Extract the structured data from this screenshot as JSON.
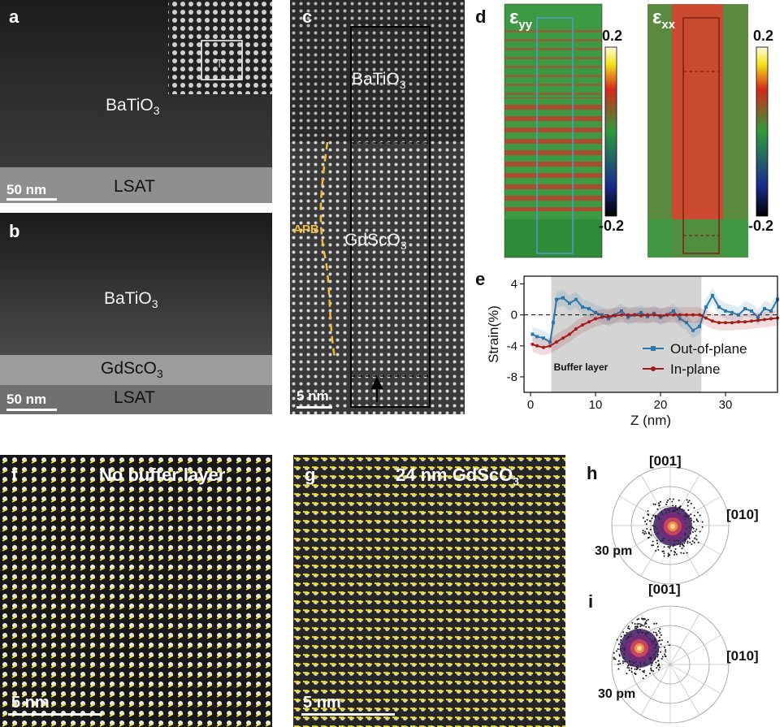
{
  "panels": {
    "a": {
      "letter": "a",
      "film": "BaTiO",
      "film_sub": "3",
      "substrate": "LSAT",
      "scale": "50 nm"
    },
    "b": {
      "letter": "b",
      "film": "BaTiO",
      "film_sub": "3",
      "buffer": "GdScO",
      "buffer_sub": "3",
      "substrate": "LSAT",
      "scale": "50 nm"
    },
    "c": {
      "letter": "c",
      "film": "BaTiO",
      "film_sub": "3",
      "buffer": "GdScO",
      "buffer_sub": "3",
      "apb": "APB",
      "scale": "5 nm"
    },
    "d": {
      "letter": "d",
      "map1_label": "ε",
      "map1_sub": "yy",
      "map2_label": "ε",
      "map2_sub": "xx",
      "cbar_max": "0.2",
      "cbar_min": "-0.2"
    },
    "e": {
      "letter": "e",
      "shaded_label": "Buffer layer"
    },
    "f": {
      "letter": "f",
      "title": "No buffer layer",
      "scale": "5 nm"
    },
    "g": {
      "letter": "g",
      "title_main": "24 nm GdScO",
      "title_sub": "3",
      "scale": "5 nm"
    },
    "h": {
      "letter": "h",
      "top_label": "[001]",
      "right_label": "[010]",
      "radius_label": "30 pm"
    },
    "i": {
      "letter": "i",
      "top_label": "[001]",
      "right_label": "[010]",
      "radius_label": "30 pm"
    }
  },
  "chart_data": {
    "type": "line",
    "xlabel": "Z (nm)",
    "ylabel": "Strain(%)",
    "xlim": [
      -1,
      38
    ],
    "ylim": [
      -10,
      5
    ],
    "xticks": [
      0,
      10,
      20,
      30
    ],
    "yticks": [
      4,
      0,
      -4,
      -8
    ],
    "shaded_region": [
      3.2,
      26.3
    ],
    "legend_placement": "bottom-right",
    "series": [
      {
        "name": "Out-of-plane",
        "color": "#2e77a8",
        "x": [
          0.3,
          1,
          2,
          3,
          3.5,
          4,
          5,
          6,
          7,
          8,
          9,
          10,
          11,
          12,
          13,
          14,
          15,
          16,
          17,
          18,
          19,
          20,
          21,
          22,
          23,
          24,
          25,
          26,
          27,
          28,
          29,
          30,
          31,
          32,
          33,
          34,
          35,
          36,
          37,
          38
        ],
        "y": [
          -2.5,
          -2.8,
          -3,
          -3.5,
          -1,
          2,
          2.2,
          1.5,
          2,
          1,
          0.8,
          0.3,
          0,
          -0.5,
          0,
          0.5,
          -0.3,
          0,
          0.3,
          -0.2,
          0.2,
          -0.3,
          0,
          0.5,
          -0.5,
          -1,
          -2,
          -1.5,
          1,
          2.5,
          1,
          0.5,
          0.3,
          0,
          0.8,
          0.5,
          -0.3,
          0.8,
          0.5,
          2
        ]
      },
      {
        "name": "In-plane",
        "color": "#a31c1c",
        "x": [
          0.3,
          1,
          2,
          3,
          4,
          5,
          6,
          7,
          8,
          9,
          10,
          11,
          12,
          13,
          14,
          15,
          16,
          17,
          18,
          19,
          20,
          21,
          22,
          23,
          24,
          25,
          26,
          27,
          28,
          29,
          30,
          31,
          32,
          33,
          34,
          35,
          36,
          37,
          38
        ],
        "y": [
          -3.8,
          -4,
          -4.2,
          -4,
          -3.5,
          -3,
          -2.5,
          -1.8,
          -1.3,
          -0.9,
          -0.5,
          -0.3,
          -0.2,
          -0.1,
          0,
          0,
          0,
          -0.1,
          0,
          0,
          -0.1,
          0,
          0,
          0,
          0,
          0,
          0,
          -0.4,
          -0.8,
          -1,
          -1,
          -1,
          -0.9,
          -0.9,
          -0.8,
          -0.7,
          -0.6,
          -0.5,
          -0.4
        ]
      }
    ]
  },
  "colors": {
    "overlay_yellow": "#f2e21c",
    "dashed_yellow": "#f5b93a",
    "strain_green": "#3a9a42",
    "strain_red": "#c53a2a"
  }
}
